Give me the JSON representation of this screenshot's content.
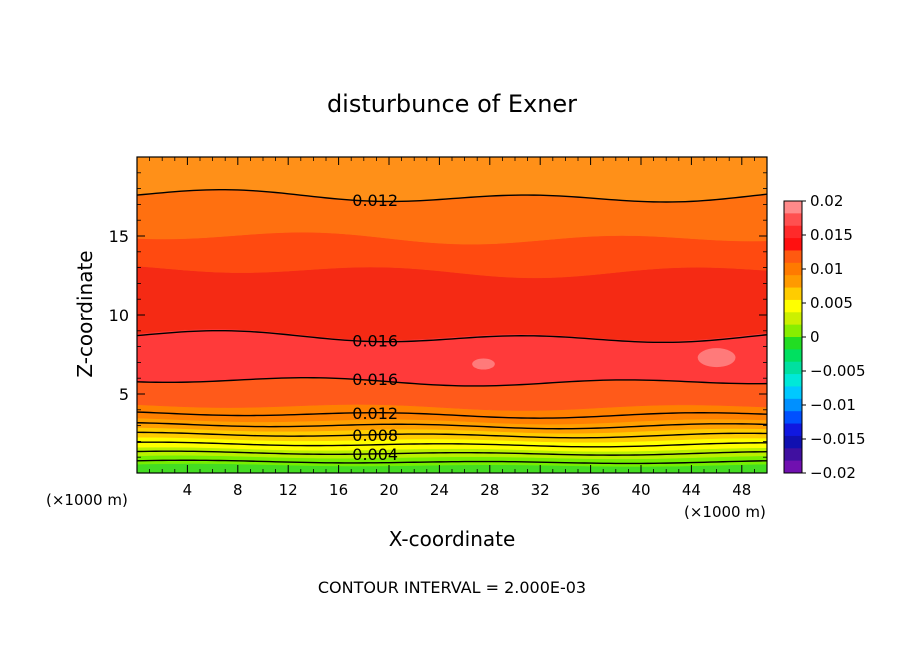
{
  "chart_data": {
    "type": "contour",
    "title": "disturbunce of Exner",
    "xlabel": "X-coordinate",
    "ylabel": "Z-coordinate",
    "x_unit_left": "(×1000 m)",
    "x_unit_right": "(×1000 m)",
    "xlim": [
      0,
      50
    ],
    "ylim": [
      0,
      20
    ],
    "x_ticks": [
      "4",
      "8",
      "12",
      "16",
      "20",
      "24",
      "28",
      "32",
      "36",
      "40",
      "44",
      "48"
    ],
    "y_ticks": [
      "5",
      "10",
      "15"
    ],
    "footer": "CONTOUR INTERVAL = 2.000E-03",
    "colorbar": {
      "vmin": -0.02,
      "vmax": 0.02,
      "tick_labels": [
        "0.02",
        "0.015",
        "0.01",
        "0.005",
        "0",
        "−0.005",
        "−0.01",
        "−0.015",
        "−0.02"
      ]
    },
    "bands": [
      {
        "z_top": 0.5,
        "value": 0.001,
        "color": "#44dd22"
      },
      {
        "z_top": 1.0,
        "value": 0.003,
        "color": "#77ee00"
      },
      {
        "z_top": 1.5,
        "value": 0.005,
        "color": "#bbf000"
      },
      {
        "z_top": 2.1,
        "value": 0.007,
        "color": "#ffff00"
      },
      {
        "z_top": 2.7,
        "value": 0.009,
        "color": "#ffcc00"
      },
      {
        "z_top": 3.3,
        "value": 0.011,
        "color": "#ffa000"
      },
      {
        "z_top": 4.2,
        "value": 0.013,
        "color": "#ff8000"
      },
      {
        "z_top": 5.8,
        "value": 0.015,
        "color": "#ff5a1a"
      },
      {
        "z_top": 8.7,
        "value": 0.017,
        "color": "#ff3a3a"
      },
      {
        "z_top": 12.8,
        "value": 0.015,
        "color": "#f52a14"
      },
      {
        "z_top": 14.9,
        "value": 0.013,
        "color": "#ff4a10"
      },
      {
        "z_top": 17.5,
        "value": 0.011,
        "color": "#ff7010"
      },
      {
        "z_top": 20.0,
        "value": 0.009,
        "color": "#ff9018"
      }
    ],
    "contours": [
      {
        "z": 0.7,
        "label": "",
        "label_x": 0
      },
      {
        "z": 1.25,
        "label": "0.004",
        "label_x": 17
      },
      {
        "z": 1.8,
        "label": "",
        "label_x": 0
      },
      {
        "z": 2.4,
        "label": "0.008",
        "label_x": 17
      },
      {
        "z": 3.0,
        "label": "",
        "label_x": 0
      },
      {
        "z": 3.7,
        "label": "0.012",
        "label_x": 17
      },
      {
        "z": 5.8,
        "label": "0.016",
        "label_x": 17
      },
      {
        "z": 8.6,
        "label": "0.016",
        "label_x": 17
      },
      {
        "z": 17.5,
        "label": "0.012",
        "label_x": 17
      }
    ],
    "highlights": [
      {
        "x": 27.5,
        "z": 6.9,
        "rx": 0.9,
        "rz": 0.35
      },
      {
        "x": 46.0,
        "z": 7.3,
        "rx": 1.5,
        "rz": 0.6
      }
    ]
  }
}
